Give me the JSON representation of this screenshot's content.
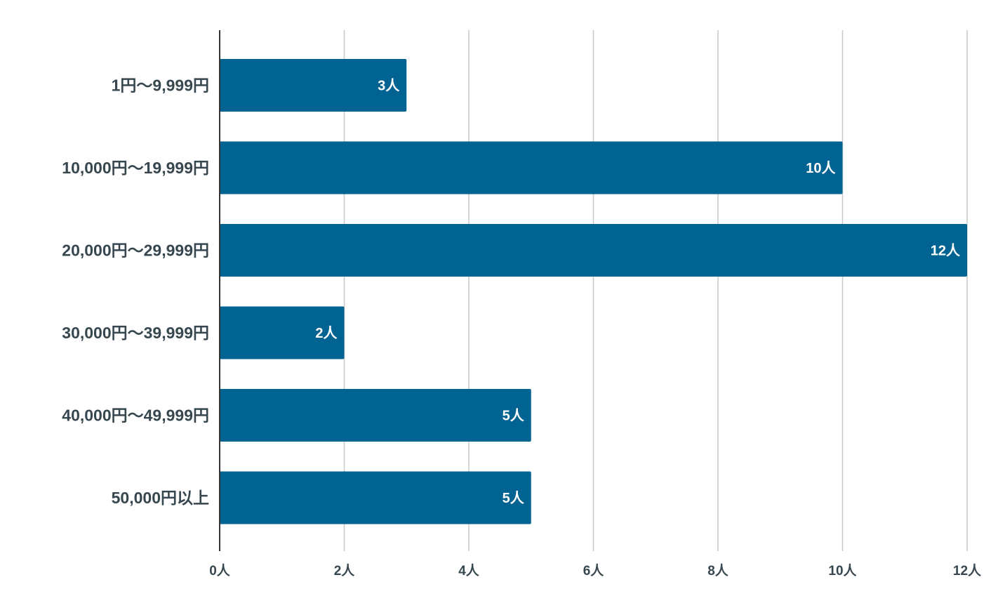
{
  "chart_data": {
    "type": "bar",
    "orientation": "horizontal",
    "categories": [
      "1円〜9,999円",
      "10,000円〜19,999円",
      "20,000円〜29,999円",
      "30,000円〜39,999円",
      "40,000円〜49,999円",
      "50,000円以上"
    ],
    "values": [
      3,
      10,
      12,
      2,
      5,
      5
    ],
    "data_labels": [
      "3人",
      "10人",
      "12人",
      "2人",
      "5人",
      "5人"
    ],
    "xlim": [
      0,
      12
    ],
    "xticks": [
      0,
      2,
      4,
      6,
      8,
      10,
      12
    ],
    "xtick_labels": [
      "0人",
      "2人",
      "4人",
      "6人",
      "8人",
      "10人",
      "12人"
    ],
    "grid": true,
    "bar_color": "#006391",
    "title": "",
    "xlabel": "",
    "ylabel": ""
  }
}
